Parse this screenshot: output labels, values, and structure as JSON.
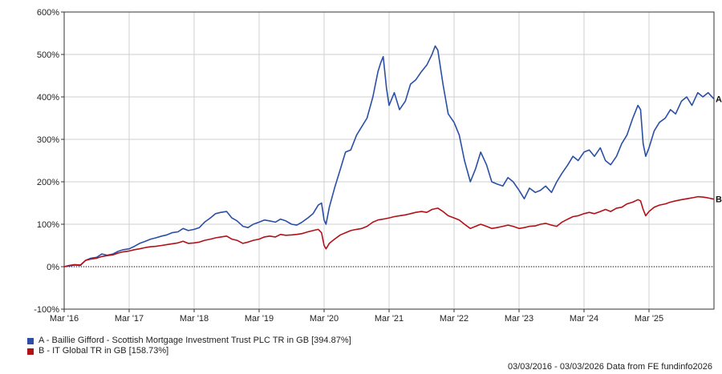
{
  "chart_data": {
    "type": "line",
    "x_ticks": [
      "Mar '16",
      "Mar '17",
      "Mar '18",
      "Mar '19",
      "Mar '20",
      "Mar '21",
      "Mar '22",
      "Mar '23",
      "Mar '24",
      "Mar '25"
    ],
    "y_ticks": [
      "600%",
      "500%",
      "400%",
      "300%",
      "200%",
      "100%",
      "0%",
      "-100%"
    ],
    "ylim": [
      -100,
      600
    ],
    "xlim": [
      2016.17,
      2026.17
    ],
    "grid": true,
    "legend_position": "bottom-left",
    "series": [
      {
        "id": "A",
        "name": "A - Baillie Gifford - Scottish Mortgage Investment Trust PLC TR in GB [394.87%]",
        "color": "#2A4FA5",
        "end_label": "A",
        "points": [
          [
            2016.17,
            0
          ],
          [
            2016.25,
            2
          ],
          [
            2016.33,
            4
          ],
          [
            2016.42,
            3
          ],
          [
            2016.5,
            15
          ],
          [
            2016.58,
            20
          ],
          [
            2016.67,
            22
          ],
          [
            2016.75,
            30
          ],
          [
            2016.83,
            27
          ],
          [
            2016.92,
            30
          ],
          [
            2017.0,
            36
          ],
          [
            2017.08,
            40
          ],
          [
            2017.17,
            42
          ],
          [
            2017.25,
            48
          ],
          [
            2017.33,
            55
          ],
          [
            2017.42,
            60
          ],
          [
            2017.5,
            65
          ],
          [
            2017.58,
            68
          ],
          [
            2017.67,
            72
          ],
          [
            2017.75,
            75
          ],
          [
            2017.83,
            80
          ],
          [
            2017.92,
            82
          ],
          [
            2018.0,
            90
          ],
          [
            2018.08,
            85
          ],
          [
            2018.17,
            88
          ],
          [
            2018.25,
            92
          ],
          [
            2018.33,
            105
          ],
          [
            2018.42,
            115
          ],
          [
            2018.5,
            125
          ],
          [
            2018.58,
            128
          ],
          [
            2018.67,
            130
          ],
          [
            2018.75,
            115
          ],
          [
            2018.83,
            108
          ],
          [
            2018.92,
            95
          ],
          [
            2019.0,
            92
          ],
          [
            2019.08,
            100
          ],
          [
            2019.17,
            105
          ],
          [
            2019.25,
            110
          ],
          [
            2019.33,
            108
          ],
          [
            2019.42,
            105
          ],
          [
            2019.5,
            112
          ],
          [
            2019.58,
            108
          ],
          [
            2019.67,
            100
          ],
          [
            2019.75,
            98
          ],
          [
            2019.83,
            105
          ],
          [
            2019.92,
            115
          ],
          [
            2020.0,
            125
          ],
          [
            2020.08,
            145
          ],
          [
            2020.13,
            150
          ],
          [
            2020.17,
            110
          ],
          [
            2020.2,
            100
          ],
          [
            2020.25,
            140
          ],
          [
            2020.33,
            185
          ],
          [
            2020.42,
            230
          ],
          [
            2020.5,
            270
          ],
          [
            2020.58,
            275
          ],
          [
            2020.67,
            310
          ],
          [
            2020.75,
            330
          ],
          [
            2020.83,
            350
          ],
          [
            2020.92,
            400
          ],
          [
            2021.0,
            460
          ],
          [
            2021.04,
            480
          ],
          [
            2021.08,
            495
          ],
          [
            2021.13,
            420
          ],
          [
            2021.17,
            380
          ],
          [
            2021.25,
            410
          ],
          [
            2021.33,
            370
          ],
          [
            2021.42,
            390
          ],
          [
            2021.5,
            430
          ],
          [
            2021.58,
            440
          ],
          [
            2021.67,
            460
          ],
          [
            2021.75,
            475
          ],
          [
            2021.83,
            500
          ],
          [
            2021.88,
            520
          ],
          [
            2021.92,
            510
          ],
          [
            2022.0,
            430
          ],
          [
            2022.08,
            360
          ],
          [
            2022.17,
            340
          ],
          [
            2022.25,
            310
          ],
          [
            2022.33,
            250
          ],
          [
            2022.42,
            200
          ],
          [
            2022.5,
            230
          ],
          [
            2022.58,
            270
          ],
          [
            2022.67,
            240
          ],
          [
            2022.75,
            200
          ],
          [
            2022.83,
            195
          ],
          [
            2022.92,
            190
          ],
          [
            2023.0,
            210
          ],
          [
            2023.08,
            200
          ],
          [
            2023.17,
            180
          ],
          [
            2023.25,
            160
          ],
          [
            2023.33,
            185
          ],
          [
            2023.42,
            175
          ],
          [
            2023.5,
            180
          ],
          [
            2023.58,
            190
          ],
          [
            2023.67,
            175
          ],
          [
            2023.75,
            200
          ],
          [
            2023.83,
            220
          ],
          [
            2023.92,
            240
          ],
          [
            2024.0,
            260
          ],
          [
            2024.08,
            250
          ],
          [
            2024.17,
            270
          ],
          [
            2024.25,
            275
          ],
          [
            2024.33,
            260
          ],
          [
            2024.42,
            280
          ],
          [
            2024.5,
            250
          ],
          [
            2024.58,
            240
          ],
          [
            2024.67,
            260
          ],
          [
            2024.75,
            290
          ],
          [
            2024.83,
            310
          ],
          [
            2024.92,
            350
          ],
          [
            2025.0,
            380
          ],
          [
            2025.04,
            370
          ],
          [
            2025.08,
            290
          ],
          [
            2025.12,
            260
          ],
          [
            2025.17,
            280
          ],
          [
            2025.25,
            320
          ],
          [
            2025.33,
            340
          ],
          [
            2025.42,
            350
          ],
          [
            2025.5,
            370
          ],
          [
            2025.58,
            360
          ],
          [
            2025.67,
            390
          ],
          [
            2025.75,
            400
          ],
          [
            2025.83,
            380
          ],
          [
            2025.92,
            410
          ],
          [
            2026.0,
            400
          ],
          [
            2026.08,
            410
          ],
          [
            2026.17,
            395
          ]
        ]
      },
      {
        "id": "B",
        "name": "B - IT Global TR in GB [158.73%]",
        "color": "#B11218",
        "end_label": "B",
        "points": [
          [
            2016.17,
            0
          ],
          [
            2016.25,
            3
          ],
          [
            2016.33,
            5
          ],
          [
            2016.42,
            4
          ],
          [
            2016.5,
            15
          ],
          [
            2016.58,
            18
          ],
          [
            2016.67,
            20
          ],
          [
            2016.75,
            24
          ],
          [
            2016.83,
            26
          ],
          [
            2016.92,
            28
          ],
          [
            2017.0,
            32
          ],
          [
            2017.08,
            35
          ],
          [
            2017.17,
            37
          ],
          [
            2017.25,
            40
          ],
          [
            2017.33,
            42
          ],
          [
            2017.42,
            45
          ],
          [
            2017.5,
            47
          ],
          [
            2017.58,
            48
          ],
          [
            2017.67,
            50
          ],
          [
            2017.75,
            52
          ],
          [
            2017.83,
            54
          ],
          [
            2017.92,
            56
          ],
          [
            2018.0,
            60
          ],
          [
            2018.08,
            55
          ],
          [
            2018.17,
            56
          ],
          [
            2018.25,
            58
          ],
          [
            2018.33,
            62
          ],
          [
            2018.42,
            65
          ],
          [
            2018.5,
            68
          ],
          [
            2018.58,
            70
          ],
          [
            2018.67,
            72
          ],
          [
            2018.75,
            65
          ],
          [
            2018.83,
            62
          ],
          [
            2018.92,
            55
          ],
          [
            2019.0,
            58
          ],
          [
            2019.08,
            62
          ],
          [
            2019.17,
            65
          ],
          [
            2019.25,
            70
          ],
          [
            2019.33,
            72
          ],
          [
            2019.42,
            70
          ],
          [
            2019.5,
            76
          ],
          [
            2019.58,
            74
          ],
          [
            2019.67,
            75
          ],
          [
            2019.75,
            76
          ],
          [
            2019.83,
            78
          ],
          [
            2019.92,
            82
          ],
          [
            2020.0,
            85
          ],
          [
            2020.08,
            88
          ],
          [
            2020.13,
            80
          ],
          [
            2020.17,
            50
          ],
          [
            2020.2,
            42
          ],
          [
            2020.25,
            55
          ],
          [
            2020.33,
            65
          ],
          [
            2020.42,
            75
          ],
          [
            2020.5,
            80
          ],
          [
            2020.58,
            85
          ],
          [
            2020.67,
            88
          ],
          [
            2020.75,
            90
          ],
          [
            2020.83,
            95
          ],
          [
            2020.92,
            105
          ],
          [
            2021.0,
            110
          ],
          [
            2021.08,
            112
          ],
          [
            2021.17,
            115
          ],
          [
            2021.25,
            118
          ],
          [
            2021.33,
            120
          ],
          [
            2021.42,
            122
          ],
          [
            2021.5,
            125
          ],
          [
            2021.58,
            128
          ],
          [
            2021.67,
            130
          ],
          [
            2021.75,
            128
          ],
          [
            2021.83,
            135
          ],
          [
            2021.92,
            138
          ],
          [
            2022.0,
            130
          ],
          [
            2022.08,
            120
          ],
          [
            2022.17,
            115
          ],
          [
            2022.25,
            110
          ],
          [
            2022.33,
            100
          ],
          [
            2022.42,
            90
          ],
          [
            2022.5,
            95
          ],
          [
            2022.58,
            100
          ],
          [
            2022.67,
            95
          ],
          [
            2022.75,
            90
          ],
          [
            2022.83,
            92
          ],
          [
            2022.92,
            95
          ],
          [
            2023.0,
            98
          ],
          [
            2023.08,
            95
          ],
          [
            2023.17,
            90
          ],
          [
            2023.25,
            92
          ],
          [
            2023.33,
            95
          ],
          [
            2023.42,
            96
          ],
          [
            2023.5,
            100
          ],
          [
            2023.58,
            102
          ],
          [
            2023.67,
            98
          ],
          [
            2023.75,
            95
          ],
          [
            2023.83,
            105
          ],
          [
            2023.92,
            112
          ],
          [
            2024.0,
            118
          ],
          [
            2024.08,
            120
          ],
          [
            2024.17,
            125
          ],
          [
            2024.25,
            128
          ],
          [
            2024.33,
            125
          ],
          [
            2024.42,
            130
          ],
          [
            2024.5,
            135
          ],
          [
            2024.58,
            130
          ],
          [
            2024.67,
            138
          ],
          [
            2024.75,
            140
          ],
          [
            2024.83,
            148
          ],
          [
            2024.92,
            152
          ],
          [
            2025.0,
            158
          ],
          [
            2025.04,
            155
          ],
          [
            2025.08,
            135
          ],
          [
            2025.12,
            120
          ],
          [
            2025.17,
            130
          ],
          [
            2025.25,
            140
          ],
          [
            2025.33,
            145
          ],
          [
            2025.42,
            148
          ],
          [
            2025.5,
            152
          ],
          [
            2025.58,
            155
          ],
          [
            2025.67,
            158
          ],
          [
            2025.75,
            160
          ],
          [
            2025.83,
            162
          ],
          [
            2025.92,
            165
          ],
          [
            2026.0,
            164
          ],
          [
            2026.08,
            162
          ],
          [
            2026.17,
            159
          ]
        ]
      }
    ]
  },
  "footer": "03/03/2016 - 03/03/2026 Data from FE fundinfo2026"
}
